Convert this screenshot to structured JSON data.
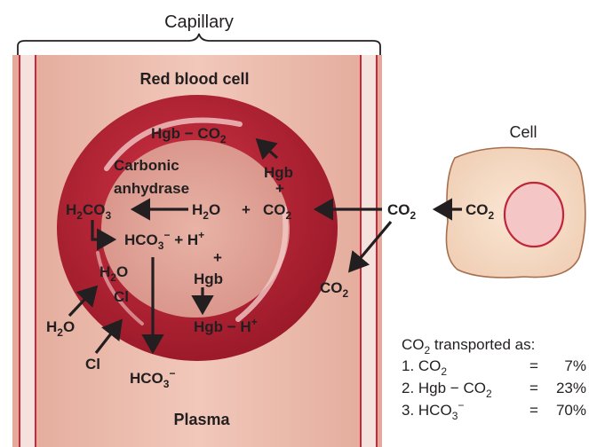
{
  "capillary_label": "Capillary",
  "red_blood_cell_label": "Red blood cell",
  "plasma_label": "Plasma",
  "cell_label": "Cell",
  "carbonic_anhydrase_line1": "Carbonic",
  "carbonic_anhydrase_line2": "anhydrase",
  "reactions": {
    "h2co3": [
      "H",
      "2",
      "CO",
      "3"
    ],
    "h2o": [
      "H",
      "2",
      "O"
    ],
    "plus": "+",
    "co2": [
      "CO",
      "2"
    ],
    "hco3_h": [
      "HCO",
      "3",
      "−",
      " + H",
      "+"
    ],
    "hgb_co2": [
      "Hgb − CO",
      "2"
    ],
    "hgb": "Hgb",
    "hgb_h": [
      "Hgb − H",
      "+"
    ],
    "h2o_plain": "H2O"
  },
  "outside": {
    "h2o_in": [
      "H",
      "2",
      "O"
    ],
    "cl_in": "Cl",
    "h2o_top": [
      "H",
      "2",
      "O"
    ],
    "cl_top": "Cl",
    "hco3_out": [
      "HCO",
      "3",
      "−"
    ],
    "co2_plasma": [
      "CO",
      "2"
    ],
    "co2_mid": [
      "CO",
      "2"
    ],
    "co2_cell": [
      "CO",
      "2"
    ]
  },
  "transport_table": {
    "title_prefix": "CO",
    "title_sub": "2",
    "title_suffix": " transported as:",
    "rows": [
      {
        "label": "1. CO",
        "sub": "2",
        "sup": "",
        "eq": "=",
        "value": "7%"
      },
      {
        "label": "2. Hgb − CO",
        "sub": "2",
        "sup": "",
        "eq": "=",
        "value": "23%"
      },
      {
        "label": "3. HCO",
        "sub": "3",
        "sup": "−",
        "eq": "=",
        "value": "70%"
      }
    ]
  },
  "colors": {
    "vessel_fill": "#ecbfb1",
    "vessel_border": "#c8283c",
    "rbc_outer": "#b52233",
    "rbc_inner": "#e0a498",
    "cell_fill": "#f6dcc6",
    "nucleus_fill": "#f4c7c6",
    "text": "#231f20"
  }
}
